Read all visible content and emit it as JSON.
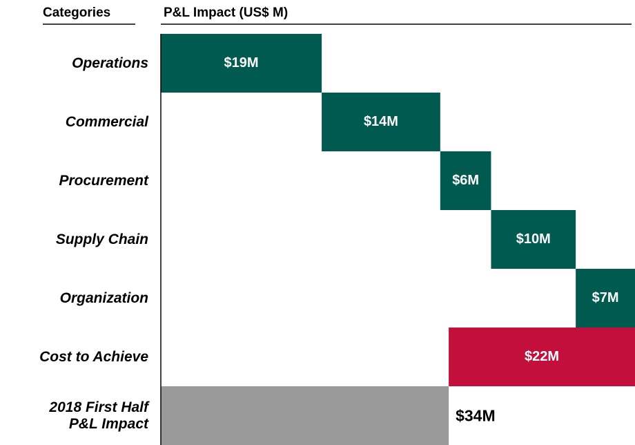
{
  "chart_data": {
    "type": "waterfall",
    "orientation": "horizontal",
    "header_left": "Categories",
    "header_right": "P&L Impact (US$ M)",
    "categories": [
      "Operations",
      "Commercial",
      "Procurement",
      "Supply Chain",
      "Organization",
      "Cost to Achieve",
      "2018 First Half\nP&L Impact"
    ],
    "values": [
      19,
      14,
      6,
      10,
      7,
      -22,
      34
    ],
    "value_labels": [
      "$19M",
      "$14M",
      "$6M",
      "$10M",
      "$7M",
      "$22M",
      "$34M"
    ],
    "measures": [
      "relative",
      "relative",
      "relative",
      "relative",
      "relative",
      "relative",
      "total"
    ],
    "colors": [
      "#005a50",
      "#005a50",
      "#005a50",
      "#005a50",
      "#005a50",
      "#c20f3c",
      "#999999"
    ]
  }
}
